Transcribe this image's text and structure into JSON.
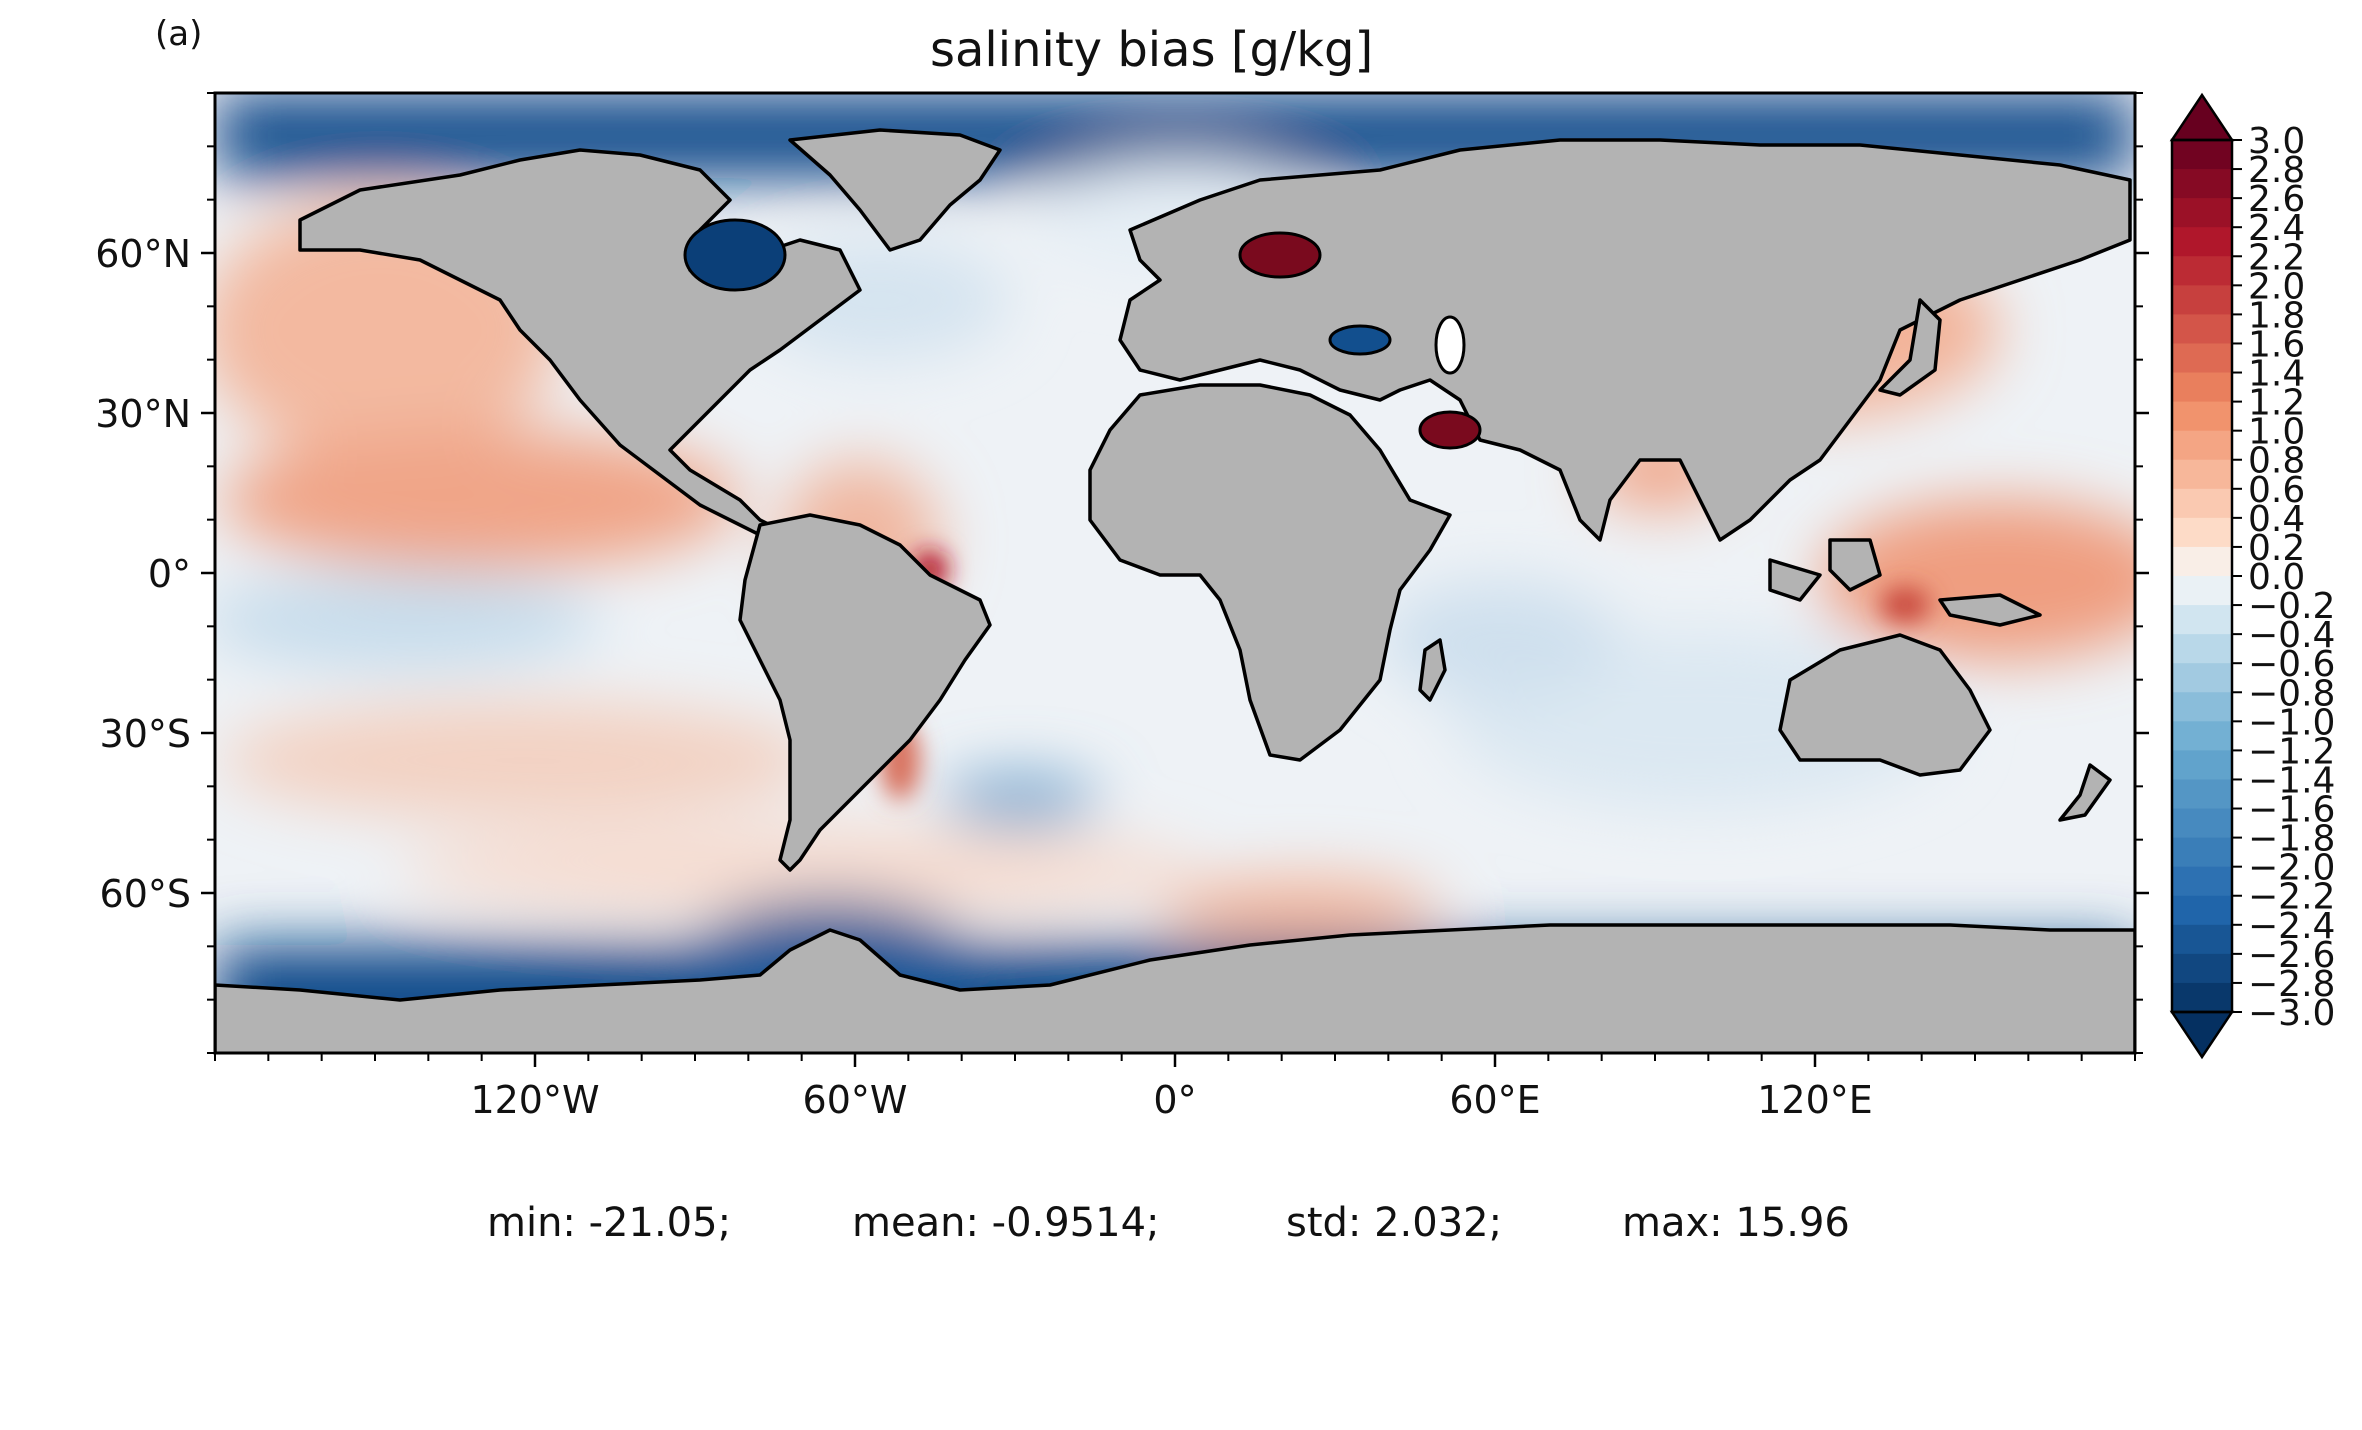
{
  "panel_label": "(a)",
  "title": "salinity bias [g/kg]",
  "map": {
    "projection": "PlateCarree",
    "land_color": "#b3b3b3",
    "coastline_color": "#000000",
    "lat_ticks": [
      "60°N",
      "30°N",
      "0°",
      "30°S",
      "60°S"
    ],
    "lat_values": [
      60,
      30,
      0,
      -30,
      -60
    ],
    "lon_ticks": [
      "120°W",
      "60°W",
      "0°",
      "60°E",
      "120°E"
    ],
    "lon_values": [
      -120,
      -60,
      0,
      60,
      120
    ],
    "lat_range": [
      -90,
      90
    ],
    "lon_range": [
      -180,
      180
    ]
  },
  "colorbar": {
    "colormap": "RdBu_r",
    "extend": "both",
    "min": -3.0,
    "max": 3.0,
    "step": 0.2,
    "tick_labels": [
      "3.0",
      "2.8",
      "2.6",
      "2.4",
      "2.2",
      "2.0",
      "1.8",
      "1.6",
      "1.4",
      "1.2",
      "1.0",
      "0.8",
      "0.6",
      "0.4",
      "0.2",
      "0.0",
      "−0.2",
      "−0.4",
      "−0.6",
      "−0.8",
      "−1.0",
      "−1.2",
      "−1.4",
      "−1.6",
      "−1.8",
      "−2.0",
      "−2.2",
      "−2.4",
      "−2.6",
      "−2.8",
      "−3.0"
    ],
    "color_low": "#053061",
    "color_mid": "#f7f7f7",
    "color_high": "#67001f"
  },
  "stats": {
    "min": "min: -21.05;",
    "mean": "mean: -0.9514;",
    "std": "std: 2.032;",
    "max": "max: 15.96"
  }
}
